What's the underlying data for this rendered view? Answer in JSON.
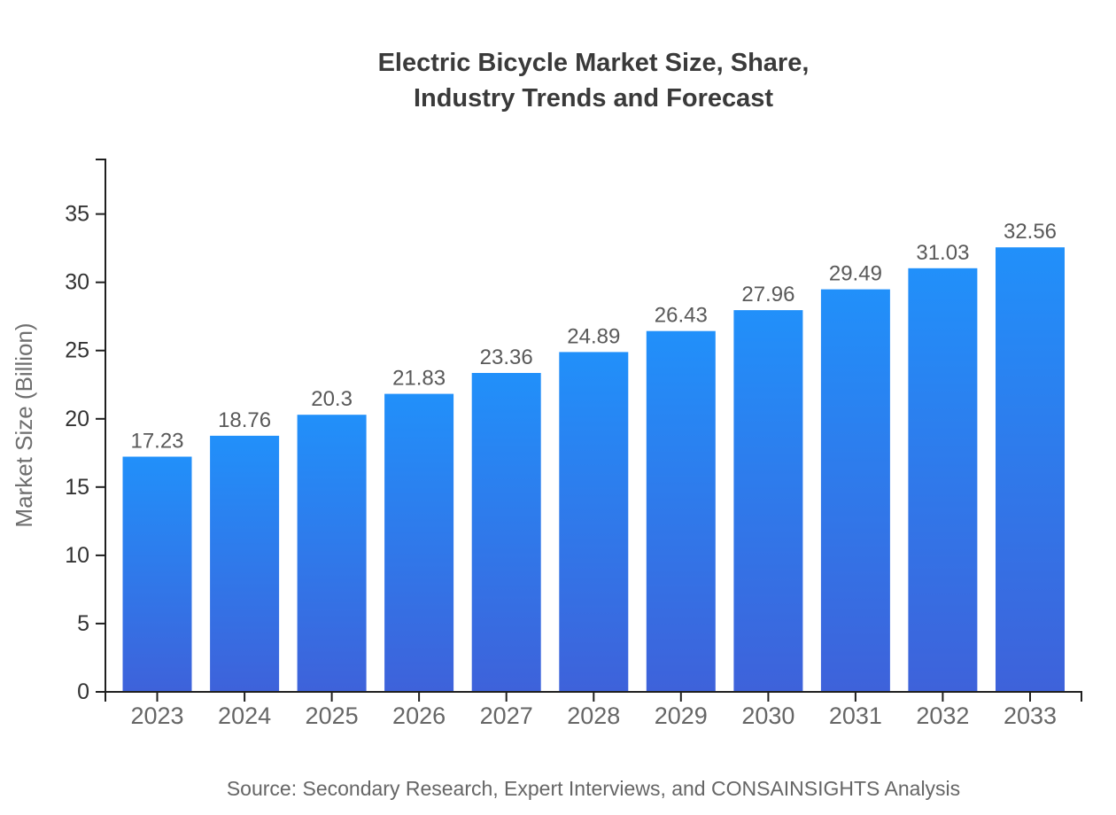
{
  "page": {
    "background": "#ffffff"
  },
  "chart_data": {
    "type": "bar",
    "title": "Electric Bicycle Market Size, Share, Industry Trends and Forecast",
    "title_lines": [
      "Electric Bicycle Market Size, Share,",
      "Industry Trends and Forecast"
    ],
    "categories": [
      "2023",
      "2024",
      "2025",
      "2026",
      "2027",
      "2028",
      "2029",
      "2030",
      "2031",
      "2032",
      "2033"
    ],
    "values": [
      17.23,
      18.76,
      20.3,
      21.83,
      23.36,
      24.89,
      26.43,
      27.96,
      29.49,
      31.03,
      32.56
    ],
    "value_labels": [
      "17.23",
      "18.76",
      "20.3",
      "21.83",
      "23.36",
      "24.89",
      "26.43",
      "27.96",
      "29.49",
      "31.03",
      "32.56"
    ],
    "xlabel": "",
    "ylabel": "Market Size (Billion)",
    "yticks": [
      0,
      5,
      10,
      15,
      20,
      25,
      30,
      35
    ],
    "ylim": [
      0,
      39
    ],
    "grid": false,
    "legend": null,
    "value_labels_shown": true,
    "source_note": "Source: Secondary Research, Expert Interviews, and CONSAINSIGHTS Analysis",
    "colors": {
      "bar_gradient_top": "#2190fa",
      "bar_gradient_bottom": "#3e62da",
      "title": "#3a3a3a",
      "axis_line": "#1f1f1f",
      "y_tick_label": "#333333",
      "x_tick_label": "#666666",
      "value_label": "#595959",
      "axis_title": "#6e6e6e",
      "source": "#666666"
    }
  }
}
